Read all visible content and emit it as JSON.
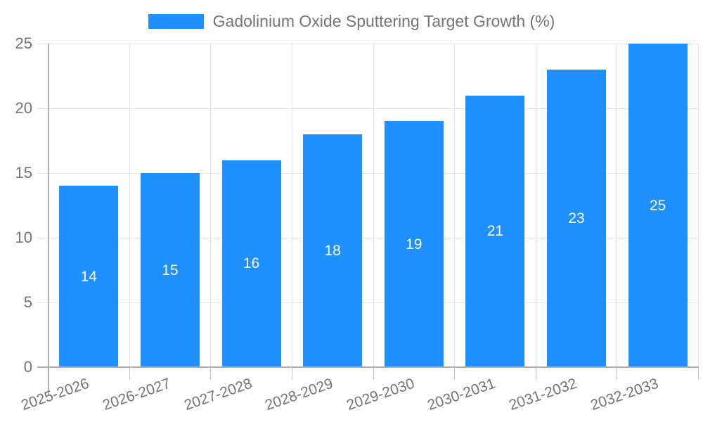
{
  "legend": {
    "label": "Gadolinium Oxide Sputtering Target Growth (%)"
  },
  "chart_data": {
    "type": "bar",
    "title": "Gadolinium Oxide Sputtering Target Growth (%)",
    "categories": [
      "2025-2026",
      "2026-2027",
      "2027-2028",
      "2028-2029",
      "2029-2030",
      "2030-2031",
      "2031-2032",
      "2032-2033"
    ],
    "values": [
      14,
      15,
      16,
      18,
      19,
      21,
      23,
      25
    ],
    "bar_value_labels": [
      "14",
      "15",
      "16",
      "18",
      "19",
      "21",
      "23",
      "25"
    ],
    "ytick_labels": [
      "0",
      "5",
      "10",
      "15",
      "20",
      "25"
    ],
    "yticks": [
      0,
      5,
      10,
      15,
      20,
      25
    ],
    "ylim": [
      0,
      25
    ],
    "xlabel": "",
    "ylabel": "",
    "grid": true,
    "legend_position": "top-center",
    "colors": {
      "bar": "#1E90FF",
      "bar_label": "#FFFFFF",
      "axis_text": "#757575",
      "gridline": "#E4E4E4",
      "axis_line": "#AFAFAF",
      "tick": "#C4C4C4",
      "background": "#FFFFFF"
    }
  }
}
